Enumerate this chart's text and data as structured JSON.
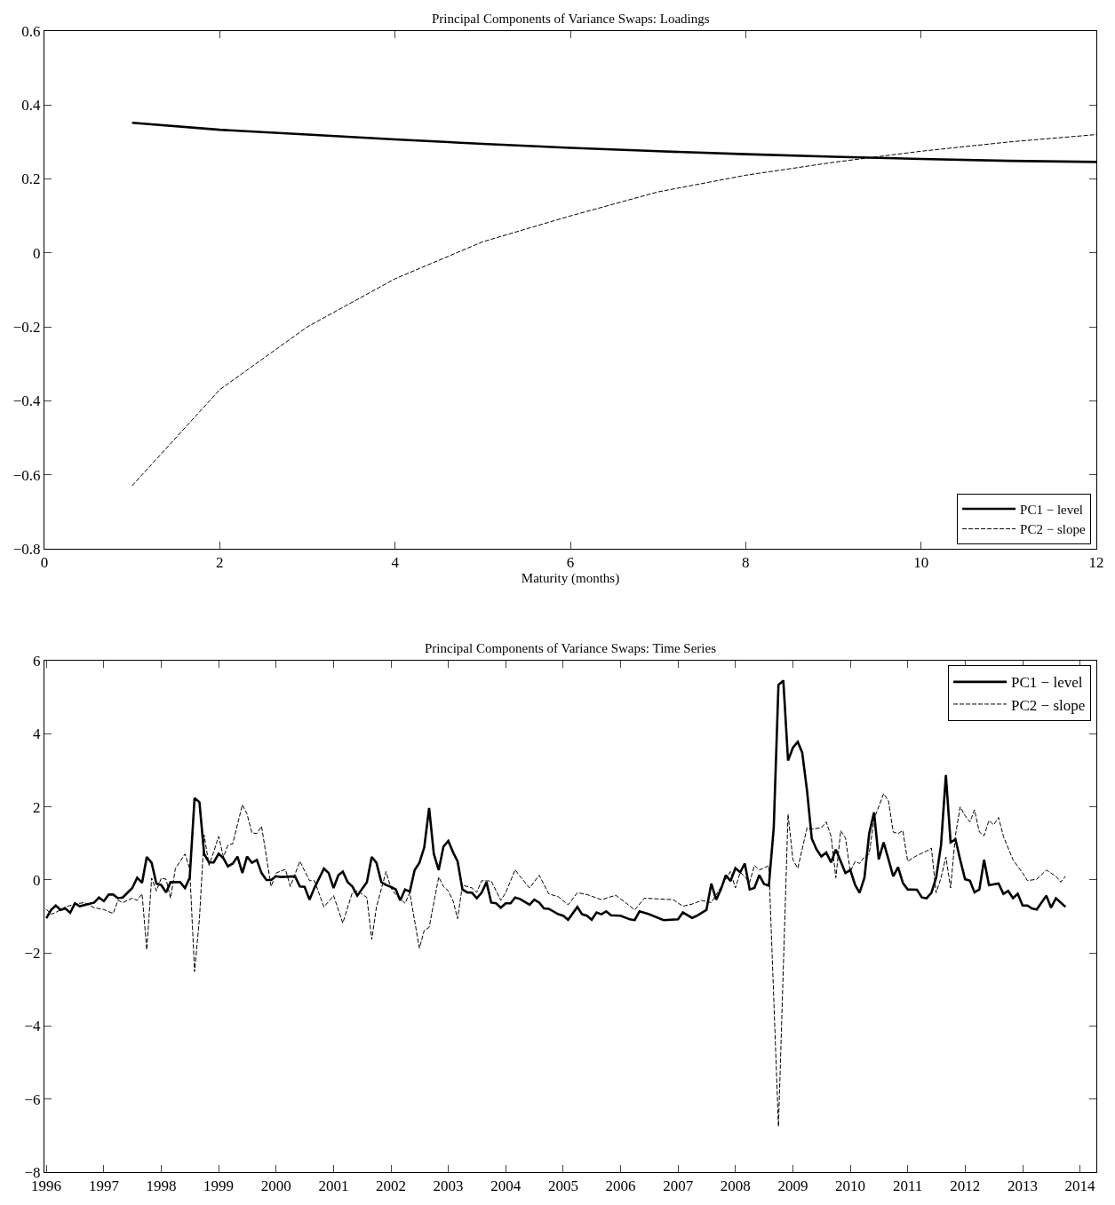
{
  "chart_data": [
    {
      "type": "line",
      "title": "Principal Components of Variance Swaps: Loadings",
      "xlabel": "Maturity (months)",
      "x": [
        1,
        2,
        3,
        4,
        5,
        6,
        7,
        8,
        9,
        10,
        11,
        12
      ],
      "series": [
        {
          "name": "PC1 − level",
          "color": "#000000",
          "line_style": "solid",
          "values": [
            0.352,
            0.333,
            0.32,
            0.307,
            0.295,
            0.284,
            0.275,
            0.267,
            0.26,
            0.254,
            0.249,
            0.246
          ]
        },
        {
          "name": "PC2 − slope",
          "color": "#000000",
          "line_style": "dashed",
          "values": [
            -0.63,
            -0.37,
            -0.2,
            -0.07,
            0.03,
            0.1,
            0.165,
            0.21,
            0.245,
            0.275,
            0.3,
            0.32
          ]
        }
      ],
      "xlim": [
        0,
        12
      ],
      "xticks": [
        0,
        2,
        4,
        6,
        8,
        10,
        12
      ],
      "ylim": [
        -0.8,
        0.6
      ],
      "yticks": [
        -0.8,
        -0.6,
        -0.4,
        -0.2,
        0,
        0.2,
        0.4,
        0.6
      ],
      "legend": "bottom right"
    },
    {
      "type": "line",
      "title": "Principal Components of Variance Swaps: Time Series",
      "series": [
        {
          "name": "PC1 − level",
          "color": "#000000",
          "line_style": "solid",
          "x": [
            "1996-01",
            "1996-02",
            "1996-03",
            "1996-04",
            "1996-05",
            "1996-06",
            "1996-07",
            "1996-08",
            "1996-11",
            "1996-12",
            "1997-01",
            "1997-02",
            "1997-03",
            "1997-04",
            "1997-05",
            "1997-07",
            "1997-08",
            "1997-09",
            "1997-10",
            "1997-11",
            "1997-12",
            "1998-01",
            "1998-02",
            "1998-03",
            "1998-05",
            "1998-06",
            "1998-07",
            "1998-08",
            "1998-09",
            "1998-10",
            "1998-11",
            "1998-12",
            "1999-01",
            "1999-02",
            "1999-03",
            "1999-04",
            "1999-05",
            "1999-06",
            "1999-07",
            "1999-08",
            "1999-09",
            "1999-10",
            "1999-11",
            "1999-12",
            "2000-01",
            "2000-02",
            "2000-05",
            "2000-06",
            "2000-07",
            "2000-08",
            "2000-09",
            "2000-11",
            "2000-12",
            "2001-01",
            "2001-02",
            "2001-03",
            "2001-04",
            "2001-05",
            "2001-06",
            "2001-08",
            "2001-09",
            "2001-10",
            "2001-11",
            "2001-12",
            "2002-01",
            "2002-02",
            "2002-03",
            "2002-04",
            "2002-05",
            "2002-06",
            "2002-07",
            "2002-08",
            "2002-09",
            "2002-10",
            "2002-11",
            "2002-12",
            "2003-01",
            "2003-02",
            "2003-03",
            "2003-04",
            "2003-05",
            "2003-06",
            "2003-07",
            "2003-08",
            "2003-09",
            "2003-10",
            "2003-11",
            "2003-12",
            "2004-01",
            "2004-02",
            "2004-03",
            "2004-04",
            "2004-06",
            "2004-07",
            "2004-08",
            "2004-09",
            "2004-10",
            "2004-12",
            "2005-01",
            "2005-02",
            "2005-04",
            "2005-05",
            "2005-06",
            "2005-07",
            "2005-08",
            "2005-09",
            "2005-10",
            "2005-11",
            "2006-01",
            "2006-03",
            "2006-04",
            "2006-05",
            "2006-07",
            "2006-10",
            "2007-01",
            "2007-02",
            "2007-04",
            "2007-05",
            "2007-07",
            "2007-08",
            "2007-09",
            "2007-10",
            "2007-11",
            "2007-12",
            "2008-01",
            "2008-02",
            "2008-03",
            "2008-04",
            "2008-05",
            "2008-06",
            "2008-07",
            "2008-08",
            "2008-09",
            "2008-10",
            "2008-11",
            "2008-12",
            "2009-01",
            "2009-02",
            "2009-03",
            "2009-04",
            "2009-05",
            "2009-06",
            "2009-07",
            "2009-08",
            "2009-09",
            "2009-10",
            "2009-11",
            "2009-12",
            "2010-01",
            "2010-02",
            "2010-03",
            "2010-04",
            "2010-05",
            "2010-06",
            "2010-07",
            "2010-08",
            "2010-09",
            "2010-10",
            "2010-11",
            "2010-12",
            "2011-01",
            "2011-03",
            "2011-04",
            "2011-05",
            "2011-06",
            "2011-07",
            "2011-08",
            "2011-09",
            "2011-10",
            "2011-11",
            "2011-12",
            "2012-01",
            "2012-02",
            "2012-03",
            "2012-04",
            "2012-05",
            "2012-06",
            "2012-08",
            "2012-09",
            "2012-10",
            "2012-11",
            "2012-12",
            "2013-01",
            "2013-02",
            "2013-03",
            "2013-04",
            "2013-05",
            "2013-06",
            "2013-07",
            "2013-08",
            "2013-10"
          ],
          "values": [
            -1.05,
            -0.82,
            -0.7,
            -0.82,
            -0.78,
            -0.9,
            -0.64,
            -0.72,
            -0.62,
            -0.48,
            -0.58,
            -0.4,
            -0.4,
            -0.5,
            -0.48,
            -0.22,
            0.06,
            -0.08,
            0.63,
            0.47,
            -0.1,
            -0.14,
            -0.34,
            -0.06,
            -0.06,
            -0.22,
            0.06,
            2.24,
            2.13,
            0.71,
            0.48,
            0.48,
            0.72,
            0.59,
            0.37,
            0.45,
            0.64,
            0.19,
            0.64,
            0.47,
            0.55,
            0.19,
            0.0,
            0.0,
            0.1,
            0.08,
            0.1,
            -0.18,
            -0.19,
            -0.54,
            -0.22,
            0.31,
            0.19,
            -0.22,
            0.13,
            0.23,
            -0.06,
            -0.18,
            -0.43,
            -0.06,
            0.63,
            0.47,
            -0.06,
            -0.14,
            -0.19,
            -0.26,
            -0.56,
            -0.26,
            -0.32,
            0.27,
            0.47,
            0.89,
            1.97,
            0.71,
            0.27,
            0.91,
            1.07,
            0.75,
            0.51,
            -0.26,
            -0.34,
            -0.35,
            -0.5,
            -0.35,
            -0.06,
            -0.62,
            -0.64,
            -0.76,
            -0.64,
            -0.64,
            -0.48,
            -0.52,
            -0.68,
            -0.54,
            -0.62,
            -0.78,
            -0.79,
            -0.94,
            -0.98,
            -1.09,
            -0.74,
            -0.94,
            -0.98,
            -1.09,
            -0.89,
            -0.94,
            -0.86,
            -0.97,
            -0.98,
            -1.08,
            -1.1,
            -0.86,
            -0.94,
            -1.1,
            -1.08,
            -0.89,
            -1.04,
            -0.98,
            -0.82,
            -0.1,
            -0.54,
            -0.26,
            0.13,
            -0.03,
            0.32,
            0.21,
            0.45,
            -0.26,
            -0.22,
            0.13,
            -0.11,
            -0.16,
            1.43,
            5.34,
            5.46,
            3.27,
            3.62,
            3.78,
            3.49,
            2.44,
            1.13,
            0.83,
            0.64,
            0.75,
            0.48,
            0.83,
            0.51,
            0.19,
            0.27,
            -0.14,
            -0.35,
            0.06,
            1.27,
            1.85,
            0.56,
            1.03,
            0.56,
            0.1,
            0.35,
            -0.08,
            -0.26,
            -0.27,
            -0.48,
            -0.5,
            -0.35,
            0.06,
            0.95,
            2.87,
            1.03,
            1.11,
            0.55,
            0.02,
            -0.02,
            -0.34,
            -0.26,
            0.55,
            -0.14,
            -0.1,
            -0.38,
            -0.3,
            -0.5,
            -0.38,
            -0.7,
            -0.7,
            -0.78,
            -0.81,
            -0.62,
            -0.43,
            -0.76,
            -0.5,
            -0.74
          ]
        },
        {
          "name": "PC2 − slope",
          "color": "#000000",
          "line_style": "dashed",
          "x": [
            "1996-01",
            "1996-02",
            "1996-03",
            "1996-05",
            "1996-07",
            "1996-09",
            "1996-11",
            "1997-01",
            "1997-03",
            "1997-04",
            "1997-05",
            "1997-07",
            "1997-08",
            "1997-09",
            "1997-10",
            "1997-11",
            "1997-12",
            "1998-01",
            "1998-02",
            "1998-03",
            "1998-04",
            "1998-06",
            "1998-07",
            "1998-08",
            "1998-09",
            "1998-10",
            "1998-11",
            "1998-12",
            "1999-01",
            "1999-02",
            "1999-03",
            "1999-04",
            "1999-06",
            "1999-07",
            "1999-08",
            "1999-09",
            "1999-10",
            "1999-12",
            "2000-01",
            "2000-03",
            "2000-04",
            "2000-06",
            "2000-08",
            "2000-09",
            "2000-11",
            "2001-01",
            "2001-03",
            "2001-05",
            "2001-06",
            "2001-08",
            "2001-09",
            "2001-10",
            "2001-12",
            "2002-01",
            "2002-02",
            "2002-04",
            "2002-05",
            "2002-07",
            "2002-08",
            "2002-09",
            "2002-11",
            "2002-12",
            "2003-01",
            "2003-02",
            "2003-03",
            "2003-04",
            "2003-06",
            "2003-07",
            "2003-08",
            "2003-10",
            "2003-12",
            "2004-01",
            "2004-03",
            "2004-04",
            "2004-06",
            "2004-08",
            "2004-10",
            "2004-12",
            "2005-02",
            "2005-04",
            "2005-06",
            "2005-09",
            "2005-12",
            "2006-02",
            "2006-04",
            "2006-06",
            "2006-09",
            "2006-12",
            "2007-02",
            "2007-04",
            "2007-06",
            "2007-08",
            "2007-12",
            "2008-01",
            "2008-02",
            "2008-04",
            "2008-05",
            "2008-06",
            "2008-08",
            "2008-10",
            "2008-12",
            "2009-01",
            "2009-02",
            "2009-04",
            "2009-05",
            "2009-07",
            "2009-08",
            "2009-09",
            "2009-10",
            "2009-11",
            "2009-12",
            "2010-01",
            "2010-02",
            "2010-03",
            "2010-04",
            "2010-05",
            "2010-06",
            "2010-08",
            "2010-09",
            "2010-10",
            "2010-11",
            "2010-12",
            "2011-01",
            "2011-03",
            "2011-05",
            "2011-06",
            "2011-07",
            "2011-08",
            "2011-09",
            "2011-10",
            "2011-11",
            "2011-12",
            "2012-01",
            "2012-02",
            "2012-03",
            "2012-04",
            "2012-05",
            "2012-06",
            "2012-07",
            "2012-08",
            "2012-09",
            "2012-11",
            "2013-01",
            "2013-02",
            "2013-04",
            "2013-06",
            "2013-08",
            "2013-09",
            "2013-10"
          ],
          "values": [
            -0.8,
            -0.94,
            -0.89,
            -0.74,
            -0.66,
            -0.62,
            -0.76,
            -0.81,
            -0.92,
            -0.56,
            -0.62,
            -0.5,
            -0.56,
            -0.38,
            -1.91,
            0.05,
            -0.3,
            0.05,
            0.02,
            -0.5,
            0.31,
            0.71,
            0.31,
            -2.51,
            -1.06,
            1.23,
            0.4,
            0.77,
            1.19,
            0.63,
            0.95,
            0.99,
            2.06,
            1.8,
            1.29,
            1.27,
            1.47,
            -0.18,
            0.19,
            0.29,
            -0.18,
            0.51,
            -0.02,
            -0.02,
            -0.74,
            -0.43,
            -1.18,
            -0.34,
            -0.3,
            -0.48,
            -1.63,
            -0.74,
            0.23,
            -0.22,
            -0.4,
            -0.64,
            -0.35,
            -1.87,
            -1.38,
            -1.3,
            0.08,
            -0.18,
            -0.3,
            -0.58,
            -1.06,
            -0.14,
            -0.22,
            -0.34,
            -0.02,
            -0.03,
            -0.56,
            -0.35,
            0.28,
            0.1,
            -0.22,
            0.13,
            -0.38,
            -0.46,
            -0.68,
            -0.35,
            -0.4,
            -0.54,
            -0.42,
            -0.62,
            -0.82,
            -0.5,
            -0.52,
            -0.54,
            -0.72,
            -0.66,
            -0.56,
            -0.62,
            0.23,
            -0.22,
            0.21,
            -0.06,
            0.4,
            0.27,
            0.39,
            -6.75,
            1.8,
            0.55,
            0.32,
            1.43,
            1.39,
            1.43,
            1.59,
            1.19,
            0.06,
            1.35,
            1.15,
            0.23,
            0.51,
            0.45,
            0.63,
            0.71,
            1.67,
            2.36,
            2.16,
            1.31,
            1.27,
            1.35,
            0.51,
            0.67,
            0.79,
            0.87,
            -0.35,
            0.06,
            0.63,
            -0.22,
            1.23,
            2.0,
            1.76,
            1.59,
            1.92,
            1.31,
            1.21,
            1.63,
            1.51,
            1.71,
            1.19,
            0.55,
            0.19,
            -0.02,
            0.02,
            0.27,
            0.1,
            -0.06,
            0.1
          ]
        }
      ],
      "xlim": [
        "1995-12-20",
        "2014-04-15"
      ],
      "xticks": [
        "1996",
        "1997",
        "1998",
        "1999",
        "2000",
        "2001",
        "2002",
        "2003",
        "2004",
        "2005",
        "2006",
        "2007",
        "2008",
        "2009",
        "2010",
        "2011",
        "2012",
        "2013",
        "2014"
      ],
      "ylim": [
        -8,
        6
      ],
      "yticks": [
        -8,
        -6,
        -4,
        -2,
        0,
        2,
        4,
        6
      ],
      "legend": "top right"
    }
  ]
}
